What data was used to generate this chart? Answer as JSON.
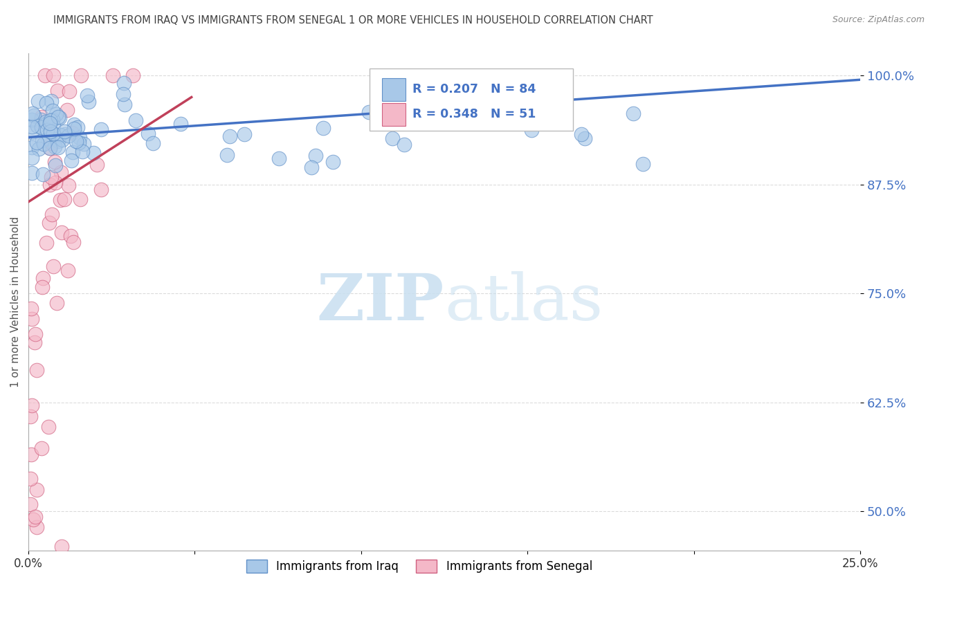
{
  "title": "IMMIGRANTS FROM IRAQ VS IMMIGRANTS FROM SENEGAL 1 OR MORE VEHICLES IN HOUSEHOLD CORRELATION CHART",
  "source": "Source: ZipAtlas.com",
  "ylabel": "1 or more Vehicles in Household",
  "iraq_R": 0.207,
  "iraq_N": 84,
  "senegal_R": 0.348,
  "senegal_N": 51,
  "iraq_color": "#A8C8E8",
  "senegal_color": "#F4B8C8",
  "iraq_edge_color": "#6090C8",
  "senegal_edge_color": "#D06080",
  "iraq_line_color": "#4472C4",
  "senegal_line_color": "#C0405A",
  "legend_text_color": "#4472C4",
  "watermark_color": "#C8DFF0",
  "background_color": "#FFFFFF",
  "grid_color": "#CCCCCC",
  "title_color": "#404040",
  "xlim": [
    0.0,
    0.25
  ],
  "ylim": [
    0.455,
    1.025
  ],
  "ytick_vals": [
    0.5,
    0.625,
    0.75,
    0.875,
    1.0
  ],
  "ytick_labels": [
    "50.0%",
    "62.5%",
    "75.0%",
    "87.5%",
    "100.0%"
  ],
  "iraq_line_x": [
    0.0,
    0.25
  ],
  "iraq_line_y": [
    0.929,
    0.995
  ],
  "senegal_line_x": [
    0.0,
    0.049
  ],
  "senegal_line_y": [
    0.855,
    0.975
  ]
}
